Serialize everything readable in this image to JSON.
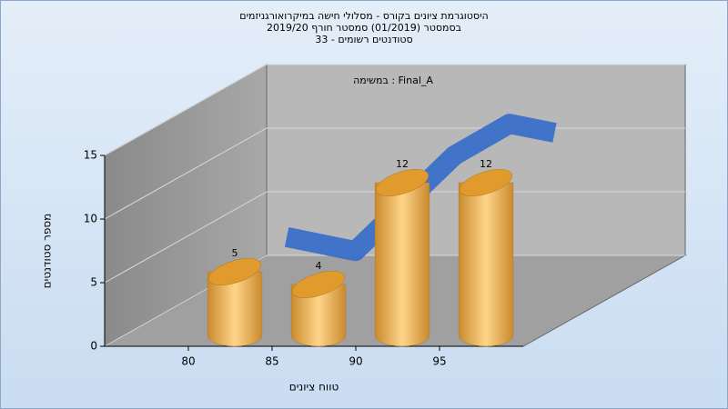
{
  "chart_data": {
    "type": "histogram3d",
    "title_lines": [
      "היסטוגרמת ציונים בקורס - מסלולי חישה במיקרואורגניזמים",
      "בסמסטר  (01/2019)  סמסטר חורף 2019/20",
      "סטודנטים רשומים - 33"
    ],
    "annotation": "במשימה : Final_A",
    "xlabel": "טווח ציונים",
    "ylabel": "מספר סטודנטים",
    "bins": [
      80,
      85,
      90,
      95,
      100
    ],
    "counts": [
      5,
      4,
      12,
      12
    ],
    "bar_color": "#e6a23c",
    "line": {
      "color": "#3a6fc8",
      "x": [
        76.2,
        80.3,
        86.2,
        89.5,
        92.2
      ],
      "values": [
        2.3,
        1.2,
        8.7,
        11.2,
        10.5
      ]
    },
    "xlim": [
      75,
      100
    ],
    "xticks": [
      80,
      85,
      90,
      95
    ],
    "ylim": [
      0,
      15
    ],
    "yticks": [
      0,
      5,
      10,
      15
    ],
    "grid": true
  }
}
